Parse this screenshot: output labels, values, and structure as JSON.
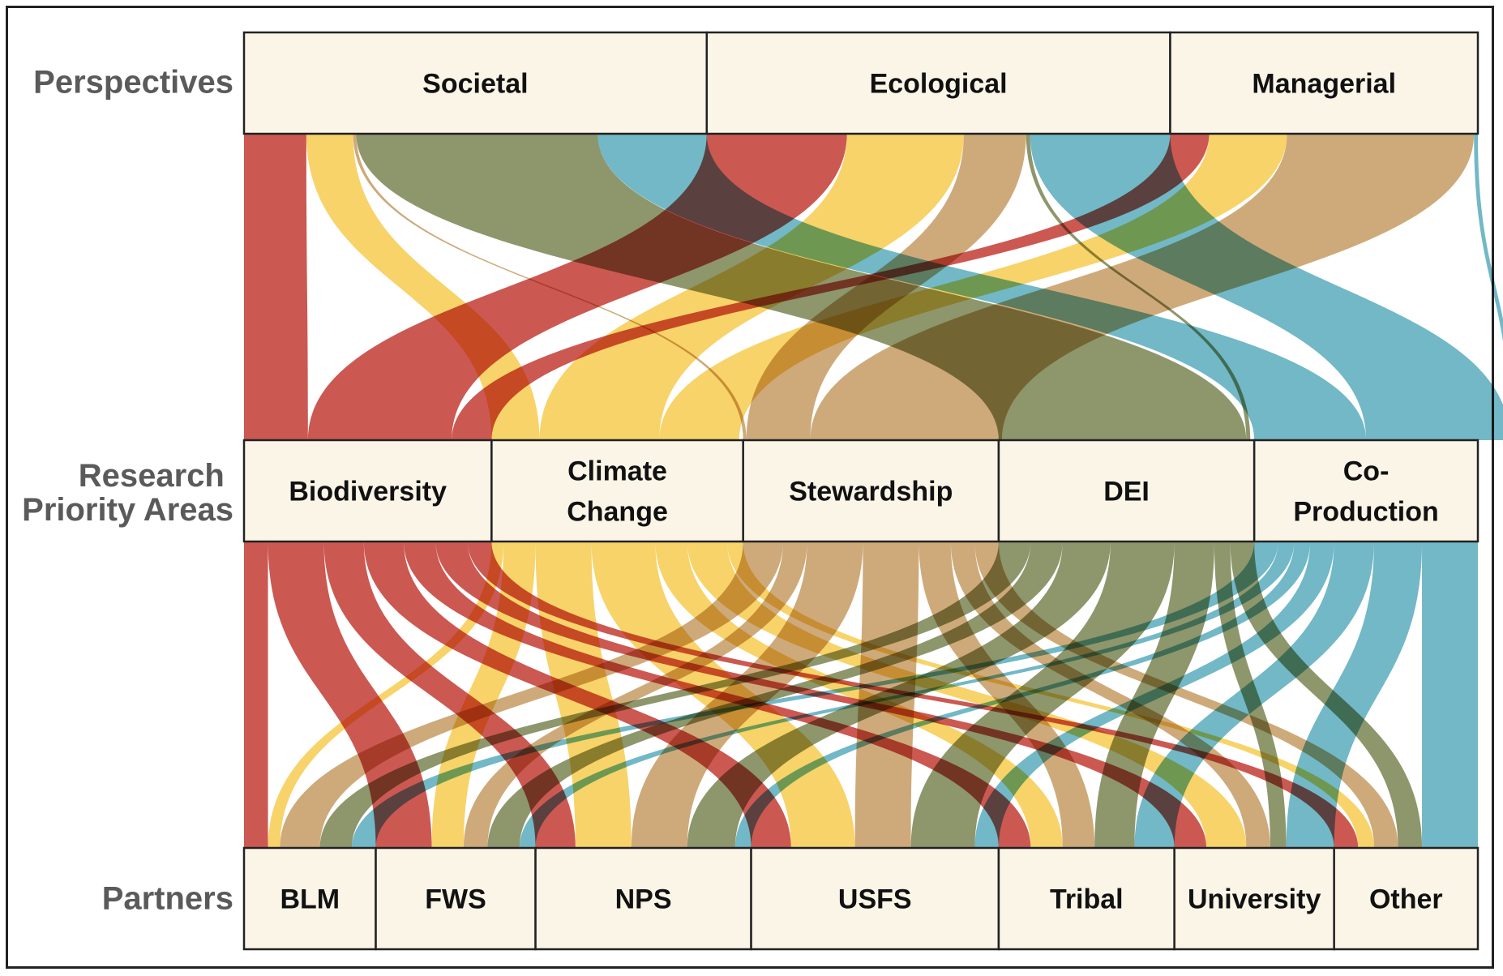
{
  "rows": {
    "perspectives": "Perspectives",
    "research": [
      "Research",
      "Priority Areas"
    ],
    "partners": "Partners"
  },
  "colors": {
    "box_fill": "#fbf5e8",
    "biodiversity": "#c43d35",
    "climate": "#f6cc52",
    "stewardship": "#c69c64",
    "dei": "#7b8554",
    "coproduction": "#5bacbd"
  },
  "perspectives": [
    {
      "id": "societal",
      "label": "Societal"
    },
    {
      "id": "ecological",
      "label": "Ecological"
    },
    {
      "id": "managerial",
      "label": "Managerial"
    }
  ],
  "research_areas": [
    {
      "id": "biodiversity",
      "label": [
        "Biodiversity"
      ]
    },
    {
      "id": "climate",
      "label": [
        "Climate",
        "Change"
      ]
    },
    {
      "id": "stewardship",
      "label": [
        "Stewardship"
      ]
    },
    {
      "id": "dei",
      "label": [
        "DEI"
      ]
    },
    {
      "id": "coproduction",
      "label": [
        "Co-",
        "Production"
      ]
    }
  ],
  "partners": [
    {
      "id": "blm",
      "label": "BLM"
    },
    {
      "id": "fws",
      "label": "FWS"
    },
    {
      "id": "nps",
      "label": "NPS"
    },
    {
      "id": "usfs",
      "label": "USFS"
    },
    {
      "id": "tribal",
      "label": "Tribal"
    },
    {
      "id": "university",
      "label": "University"
    },
    {
      "id": "other",
      "label": "Other"
    }
  ],
  "flows_top": [
    {
      "from": "societal",
      "to": "biodiversity",
      "value": 8
    },
    {
      "from": "societal",
      "to": "climate",
      "value": 6
    },
    {
      "from": "societal",
      "to": "stewardship",
      "value": 0.4
    },
    {
      "from": "societal",
      "to": "dei",
      "value": 31
    },
    {
      "from": "societal",
      "to": "coproduction",
      "value": 14
    },
    {
      "from": "ecological",
      "to": "biodiversity",
      "value": 18
    },
    {
      "from": "ecological",
      "to": "climate",
      "value": 15
    },
    {
      "from": "ecological",
      "to": "stewardship",
      "value": 8
    },
    {
      "from": "ecological",
      "to": "dei",
      "value": 0.5
    },
    {
      "from": "ecological",
      "to": "coproduction",
      "value": 18
    },
    {
      "from": "managerial",
      "to": "biodiversity",
      "value": 5
    },
    {
      "from": "managerial",
      "to": "climate",
      "value": 10
    },
    {
      "from": "managerial",
      "to": "stewardship",
      "value": 24
    },
    {
      "from": "managerial",
      "to": "coproduction",
      "value": 0.5
    }
  ],
  "flows_bottom": [
    {
      "from": "biodiversity",
      "to": "blm",
      "value": 3
    },
    {
      "from": "biodiversity",
      "to": "fws",
      "value": 7
    },
    {
      "from": "biodiversity",
      "to": "nps",
      "value": 5
    },
    {
      "from": "biodiversity",
      "to": "usfs",
      "value": 5
    },
    {
      "from": "biodiversity",
      "to": "tribal",
      "value": 4
    },
    {
      "from": "biodiversity",
      "to": "university",
      "value": 4
    },
    {
      "from": "biodiversity",
      "to": "other",
      "value": 3
    },
    {
      "from": "climate",
      "to": "blm",
      "value": 1.5
    },
    {
      "from": "climate",
      "to": "fws",
      "value": 4
    },
    {
      "from": "climate",
      "to": "nps",
      "value": 7
    },
    {
      "from": "climate",
      "to": "usfs",
      "value": 8
    },
    {
      "from": "climate",
      "to": "tribal",
      "value": 4
    },
    {
      "from": "climate",
      "to": "university",
      "value": 5
    },
    {
      "from": "climate",
      "to": "other",
      "value": 2
    },
    {
      "from": "stewardship",
      "to": "blm",
      "value": 5
    },
    {
      "from": "stewardship",
      "to": "fws",
      "value": 3
    },
    {
      "from": "stewardship",
      "to": "nps",
      "value": 7
    },
    {
      "from": "stewardship",
      "to": "usfs",
      "value": 7
    },
    {
      "from": "stewardship",
      "to": "tribal",
      "value": 4
    },
    {
      "from": "stewardship",
      "to": "university",
      "value": 3
    },
    {
      "from": "stewardship",
      "to": "other",
      "value": 3
    },
    {
      "from": "dei",
      "to": "blm",
      "value": 4
    },
    {
      "from": "dei",
      "to": "fws",
      "value": 4
    },
    {
      "from": "dei",
      "to": "nps",
      "value": 6
    },
    {
      "from": "dei",
      "to": "usfs",
      "value": 8
    },
    {
      "from": "dei",
      "to": "tribal",
      "value": 5
    },
    {
      "from": "dei",
      "to": "university",
      "value": 2
    },
    {
      "from": "dei",
      "to": "other",
      "value": 3
    },
    {
      "from": "coproduction",
      "to": "blm",
      "value": 3
    },
    {
      "from": "coproduction",
      "to": "fws",
      "value": 2
    },
    {
      "from": "coproduction",
      "to": "nps",
      "value": 2
    },
    {
      "from": "coproduction",
      "to": "usfs",
      "value": 3
    },
    {
      "from": "coproduction",
      "to": "tribal",
      "value": 5
    },
    {
      "from": "coproduction",
      "to": "university",
      "value": 6
    },
    {
      "from": "coproduction",
      "to": "other",
      "value": 7
    }
  ]
}
